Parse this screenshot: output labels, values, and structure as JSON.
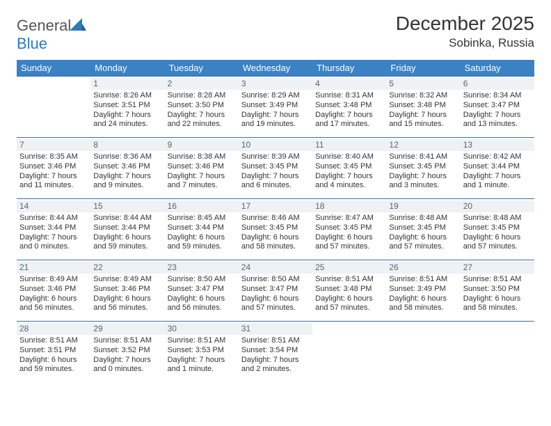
{
  "brand": {
    "text1": "General",
    "text2": "Blue",
    "logo_color": "#2b7bbf"
  },
  "title": "December 2025",
  "location": "Sobinka, Russia",
  "colors": {
    "header_bg": "#3a82c4",
    "header_text": "#ffffff",
    "row_border": "#3a6ea5",
    "daynum_bg": "#eef2f5",
    "daynum_text": "#586470",
    "body_text": "#333333"
  },
  "day_headers": [
    "Sunday",
    "Monday",
    "Tuesday",
    "Wednesday",
    "Thursday",
    "Friday",
    "Saturday"
  ],
  "weeks": [
    [
      null,
      {
        "n": "1",
        "sr": "Sunrise: 8:26 AM",
        "ss": "Sunset: 3:51 PM",
        "dl": "Daylight: 7 hours and 24 minutes."
      },
      {
        "n": "2",
        "sr": "Sunrise: 8:28 AM",
        "ss": "Sunset: 3:50 PM",
        "dl": "Daylight: 7 hours and 22 minutes."
      },
      {
        "n": "3",
        "sr": "Sunrise: 8:29 AM",
        "ss": "Sunset: 3:49 PM",
        "dl": "Daylight: 7 hours and 19 minutes."
      },
      {
        "n": "4",
        "sr": "Sunrise: 8:31 AM",
        "ss": "Sunset: 3:48 PM",
        "dl": "Daylight: 7 hours and 17 minutes."
      },
      {
        "n": "5",
        "sr": "Sunrise: 8:32 AM",
        "ss": "Sunset: 3:48 PM",
        "dl": "Daylight: 7 hours and 15 minutes."
      },
      {
        "n": "6",
        "sr": "Sunrise: 8:34 AM",
        "ss": "Sunset: 3:47 PM",
        "dl": "Daylight: 7 hours and 13 minutes."
      }
    ],
    [
      {
        "n": "7",
        "sr": "Sunrise: 8:35 AM",
        "ss": "Sunset: 3:46 PM",
        "dl": "Daylight: 7 hours and 11 minutes."
      },
      {
        "n": "8",
        "sr": "Sunrise: 8:36 AM",
        "ss": "Sunset: 3:46 PM",
        "dl": "Daylight: 7 hours and 9 minutes."
      },
      {
        "n": "9",
        "sr": "Sunrise: 8:38 AM",
        "ss": "Sunset: 3:46 PM",
        "dl": "Daylight: 7 hours and 7 minutes."
      },
      {
        "n": "10",
        "sr": "Sunrise: 8:39 AM",
        "ss": "Sunset: 3:45 PM",
        "dl": "Daylight: 7 hours and 6 minutes."
      },
      {
        "n": "11",
        "sr": "Sunrise: 8:40 AM",
        "ss": "Sunset: 3:45 PM",
        "dl": "Daylight: 7 hours and 4 minutes."
      },
      {
        "n": "12",
        "sr": "Sunrise: 8:41 AM",
        "ss": "Sunset: 3:45 PM",
        "dl": "Daylight: 7 hours and 3 minutes."
      },
      {
        "n": "13",
        "sr": "Sunrise: 8:42 AM",
        "ss": "Sunset: 3:44 PM",
        "dl": "Daylight: 7 hours and 1 minute."
      }
    ],
    [
      {
        "n": "14",
        "sr": "Sunrise: 8:44 AM",
        "ss": "Sunset: 3:44 PM",
        "dl": "Daylight: 7 hours and 0 minutes."
      },
      {
        "n": "15",
        "sr": "Sunrise: 8:44 AM",
        "ss": "Sunset: 3:44 PM",
        "dl": "Daylight: 6 hours and 59 minutes."
      },
      {
        "n": "16",
        "sr": "Sunrise: 8:45 AM",
        "ss": "Sunset: 3:44 PM",
        "dl": "Daylight: 6 hours and 59 minutes."
      },
      {
        "n": "17",
        "sr": "Sunrise: 8:46 AM",
        "ss": "Sunset: 3:45 PM",
        "dl": "Daylight: 6 hours and 58 minutes."
      },
      {
        "n": "18",
        "sr": "Sunrise: 8:47 AM",
        "ss": "Sunset: 3:45 PM",
        "dl": "Daylight: 6 hours and 57 minutes."
      },
      {
        "n": "19",
        "sr": "Sunrise: 8:48 AM",
        "ss": "Sunset: 3:45 PM",
        "dl": "Daylight: 6 hours and 57 minutes."
      },
      {
        "n": "20",
        "sr": "Sunrise: 8:48 AM",
        "ss": "Sunset: 3:45 PM",
        "dl": "Daylight: 6 hours and 57 minutes."
      }
    ],
    [
      {
        "n": "21",
        "sr": "Sunrise: 8:49 AM",
        "ss": "Sunset: 3:46 PM",
        "dl": "Daylight: 6 hours and 56 minutes."
      },
      {
        "n": "22",
        "sr": "Sunrise: 8:49 AM",
        "ss": "Sunset: 3:46 PM",
        "dl": "Daylight: 6 hours and 56 minutes."
      },
      {
        "n": "23",
        "sr": "Sunrise: 8:50 AM",
        "ss": "Sunset: 3:47 PM",
        "dl": "Daylight: 6 hours and 56 minutes."
      },
      {
        "n": "24",
        "sr": "Sunrise: 8:50 AM",
        "ss": "Sunset: 3:47 PM",
        "dl": "Daylight: 6 hours and 57 minutes."
      },
      {
        "n": "25",
        "sr": "Sunrise: 8:51 AM",
        "ss": "Sunset: 3:48 PM",
        "dl": "Daylight: 6 hours and 57 minutes."
      },
      {
        "n": "26",
        "sr": "Sunrise: 8:51 AM",
        "ss": "Sunset: 3:49 PM",
        "dl": "Daylight: 6 hours and 58 minutes."
      },
      {
        "n": "27",
        "sr": "Sunrise: 8:51 AM",
        "ss": "Sunset: 3:50 PM",
        "dl": "Daylight: 6 hours and 58 minutes."
      }
    ],
    [
      {
        "n": "28",
        "sr": "Sunrise: 8:51 AM",
        "ss": "Sunset: 3:51 PM",
        "dl": "Daylight: 6 hours and 59 minutes."
      },
      {
        "n": "29",
        "sr": "Sunrise: 8:51 AM",
        "ss": "Sunset: 3:52 PM",
        "dl": "Daylight: 7 hours and 0 minutes."
      },
      {
        "n": "30",
        "sr": "Sunrise: 8:51 AM",
        "ss": "Sunset: 3:53 PM",
        "dl": "Daylight: 7 hours and 1 minute."
      },
      {
        "n": "31",
        "sr": "Sunrise: 8:51 AM",
        "ss": "Sunset: 3:54 PM",
        "dl": "Daylight: 7 hours and 2 minutes."
      },
      null,
      null,
      null
    ]
  ]
}
